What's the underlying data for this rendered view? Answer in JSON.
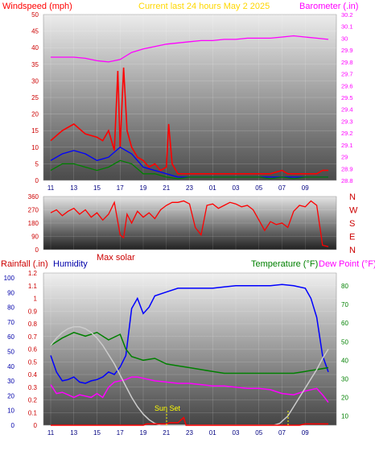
{
  "chart_data": [
    {
      "type": "line",
      "title": "Current last 24 hours May 2 2025",
      "left_axis_label": "Windspeed (mph)",
      "right_axis_label": "Barometer (.in)",
      "left_ticks": [
        "0",
        "5",
        "10",
        "15",
        "20",
        "25",
        "30",
        "35",
        "40",
        "45",
        "50"
      ],
      "right_ticks": [
        "28.8",
        "28.9",
        "29",
        "29.1",
        "29.2",
        "29.3",
        "29.4",
        "29.5",
        "29.6",
        "29.7",
        "29.8",
        "29.9",
        "30",
        "30.1",
        "30.2"
      ],
      "x_ticks": [
        "11",
        "13",
        "15",
        "17",
        "19",
        "21",
        "23",
        "01",
        "03",
        "05",
        "07",
        "09"
      ],
      "left_ylim": [
        0,
        50
      ],
      "right_ylim": [
        28.8,
        30.2
      ],
      "series": [
        {
          "color": "#ff0000",
          "axis": "left",
          "x": [
            0,
            1,
            2,
            3,
            4,
            4.5,
            5,
            5.5,
            5.8,
            6,
            6.3,
            6.6,
            7,
            7.5,
            8,
            8.5,
            9,
            9.5,
            10,
            10.2,
            10.5,
            11,
            12,
            13,
            14,
            15,
            16,
            17,
            18,
            19,
            20,
            20.5,
            21,
            21.5,
            22,
            22.5,
            23,
            23.5,
            24
          ],
          "y": [
            12,
            15,
            17,
            14,
            13,
            12,
            15,
            9,
            33,
            10,
            34,
            15,
            10,
            7,
            6,
            4,
            5,
            3,
            4,
            17,
            5,
            2,
            2,
            2,
            2,
            2,
            2,
            2,
            2,
            2,
            3,
            2,
            2,
            2,
            2,
            2,
            2,
            3,
            3
          ]
        },
        {
          "color": "#0000ff",
          "axis": "left",
          "x": [
            0,
            1,
            2,
            3,
            4,
            5,
            6,
            7,
            8,
            9,
            10,
            11,
            12,
            13,
            14,
            15,
            16,
            17,
            18,
            19,
            20,
            21,
            22,
            23,
            24
          ],
          "y": [
            6,
            8,
            9,
            8,
            6,
            7,
            10,
            8,
            4,
            3,
            2,
            1,
            1,
            1,
            1,
            1,
            1,
            1,
            1,
            1,
            1,
            1,
            1,
            1,
            1
          ]
        },
        {
          "color": "#008000",
          "axis": "left",
          "x": [
            0,
            1,
            2,
            3,
            4,
            5,
            6,
            7,
            8,
            9,
            10,
            11,
            12,
            13,
            14,
            15,
            16,
            17,
            18,
            19,
            20,
            21,
            22,
            23,
            24
          ],
          "y": [
            3,
            5,
            5,
            4,
            3,
            4,
            6,
            5,
            2,
            2,
            1,
            0.5,
            1,
            1,
            1,
            1,
            1,
            1,
            1,
            0.5,
            1,
            0.5,
            1,
            1,
            1
          ]
        },
        {
          "color": "#ff00ff",
          "axis": "right",
          "x": [
            0,
            1,
            2,
            3,
            4,
            5,
            5.5,
            6,
            6.5,
            7,
            8,
            9,
            10,
            11,
            12,
            13,
            14,
            15,
            16,
            17,
            18,
            19,
            20,
            21,
            22,
            23,
            24
          ],
          "y": [
            29.84,
            29.84,
            29.84,
            29.83,
            29.81,
            29.8,
            29.81,
            29.82,
            29.85,
            29.88,
            29.91,
            29.93,
            29.95,
            29.96,
            29.97,
            29.98,
            29.98,
            29.99,
            29.99,
            30.0,
            30.0,
            30.0,
            30.01,
            30.02,
            30.01,
            30.0,
            29.99
          ]
        }
      ]
    },
    {
      "type": "scatter",
      "xlabel": "Max solar",
      "left_ticks": [
        "0",
        "90",
        "180",
        "270",
        "360"
      ],
      "right_ticks": [
        "N",
        "W",
        "S",
        "E",
        "N"
      ],
      "ylim": [
        0,
        360
      ],
      "series": [
        {
          "color": "#ff0000",
          "x": [
            0,
            0.5,
            1,
            1.5,
            2,
            2.5,
            3,
            3.5,
            4,
            4.5,
            5,
            5.5,
            6,
            6.3,
            6.6,
            7,
            7.5,
            8,
            8.5,
            9,
            9.5,
            10,
            10.5,
            11,
            11.5,
            12,
            12.5,
            13,
            13.5,
            14,
            14.5,
            15,
            15.5,
            16,
            16.5,
            17,
            17.5,
            18,
            18.5,
            19,
            19.5,
            20,
            20.5,
            21,
            21.5,
            22,
            22.5,
            23,
            23.5,
            24
          ],
          "y": [
            250,
            270,
            230,
            260,
            280,
            240,
            270,
            220,
            250,
            200,
            240,
            320,
            100,
            80,
            240,
            180,
            260,
            220,
            250,
            210,
            270,
            300,
            320,
            320,
            330,
            310,
            150,
            100,
            300,
            310,
            280,
            300,
            320,
            310,
            290,
            300,
            270,
            200,
            130,
            190,
            170,
            180,
            150,
            260,
            300,
            290,
            330,
            300,
            30,
            20
          ]
        }
      ]
    },
    {
      "type": "line",
      "left_axis_label": "Rainfall (.in)",
      "left2_axis_label": "Humidity",
      "right_axis_label": "Temperature (°F)",
      "right2_axis_label": "Dew Point (°F)",
      "annotation": "Sun Set",
      "left_ticks": [
        "0",
        "0.1",
        "0.2",
        "0.3",
        "0.4",
        "0.5",
        "0.6",
        "0.7",
        "0.8",
        "0.9",
        "1",
        "1.1",
        "1.2"
      ],
      "left2_ticks": [
        "0",
        "10",
        "20",
        "30",
        "40",
        "50",
        "60",
        "70",
        "80",
        "90",
        "100"
      ],
      "right_ticks": [
        "10",
        "20",
        "30",
        "40",
        "50",
        "60",
        "70",
        "80"
      ],
      "x_ticks": [
        "11",
        "13",
        "15",
        "17",
        "19",
        "21",
        "23",
        "01",
        "03",
        "05",
        "07",
        "09"
      ],
      "left_ylim": [
        0,
        1.2
      ],
      "right_ylim": [
        5,
        87
      ],
      "series": [
        {
          "color": "#0000ff",
          "axis": "left",
          "x": [
            0,
            0.5,
            1,
            1.5,
            2,
            2.5,
            3,
            3.5,
            4,
            4.5,
            5,
            5.5,
            6,
            6.5,
            7,
            7.5,
            8,
            8.5,
            9,
            10,
            11,
            12,
            13,
            14,
            15,
            16,
            17,
            18,
            19,
            20,
            21,
            22,
            22.5,
            23,
            23.5,
            24
          ],
          "y": [
            0.55,
            0.42,
            0.35,
            0.36,
            0.38,
            0.34,
            0.33,
            0.35,
            0.36,
            0.38,
            0.42,
            0.4,
            0.46,
            0.55,
            0.92,
            1.0,
            0.88,
            0.93,
            1.02,
            1.05,
            1.08,
            1.08,
            1.08,
            1.08,
            1.09,
            1.1,
            1.1,
            1.1,
            1.1,
            1.11,
            1.1,
            1.08,
            1.0,
            0.85,
            0.55,
            0.42
          ]
        },
        {
          "color": "#ff00ff",
          "axis": "left",
          "x": [
            0,
            0.5,
            1,
            1.5,
            2,
            2.5,
            3,
            3.5,
            4,
            4.5,
            5,
            5.5,
            6,
            6.5,
            7,
            7.5,
            8,
            9,
            10,
            11,
            12,
            13,
            14,
            15,
            16,
            17,
            18,
            19,
            20,
            21,
            22,
            23,
            23.5,
            24
          ],
          "y": [
            0.32,
            0.25,
            0.26,
            0.24,
            0.22,
            0.24,
            0.23,
            0.22,
            0.25,
            0.22,
            0.3,
            0.34,
            0.35,
            0.36,
            0.38,
            0.38,
            0.37,
            0.35,
            0.34,
            0.33,
            0.33,
            0.32,
            0.31,
            0.31,
            0.3,
            0.29,
            0.29,
            0.28,
            0.25,
            0.24,
            0.27,
            0.29,
            0.24,
            0.18
          ]
        },
        {
          "color": "#008000",
          "axis": "right",
          "x": [
            0,
            1,
            2,
            3,
            4,
            5,
            6,
            6.5,
            7,
            8,
            9,
            10,
            11,
            12,
            13,
            14,
            15,
            16,
            17,
            18,
            19,
            20,
            21,
            22,
            23,
            24
          ],
          "y": [
            48,
            52,
            55,
            53,
            55,
            51,
            54,
            46,
            42,
            40,
            41,
            38,
            37,
            36,
            35,
            34,
            33,
            33,
            33,
            33,
            33,
            33,
            33,
            34,
            35,
            36
          ]
        },
        {
          "color": "#cccccc",
          "axis": "right",
          "x": [
            0,
            0.5,
            1,
            1.5,
            2,
            2.5,
            3,
            3.5,
            4,
            4.5,
            5,
            5.5,
            6,
            6.5,
            7,
            7.5,
            8,
            8.5,
            9,
            9.5,
            9.8,
            19.3,
            19.8,
            20.5,
            21,
            21.5,
            22,
            22.5,
            23,
            23.5,
            24
          ],
          "y": [
            48,
            52,
            55,
            57,
            58,
            58,
            57,
            55,
            52,
            48,
            43,
            38,
            32,
            26,
            20,
            15,
            11,
            8,
            6,
            5,
            5,
            5,
            6,
            10,
            15,
            20,
            25,
            30,
            35,
            41,
            46
          ]
        },
        {
          "color": "#ff0000",
          "axis": "left",
          "x": [
            0,
            8,
            8.3,
            10,
            10.3,
            11,
            11.5,
            11.7,
            21.5,
            22,
            24
          ],
          "y": [
            0,
            0,
            0.01,
            0.01,
            0.02,
            0.02,
            0.06,
            0,
            0,
            0.01,
            0.01
          ]
        }
      ]
    }
  ]
}
